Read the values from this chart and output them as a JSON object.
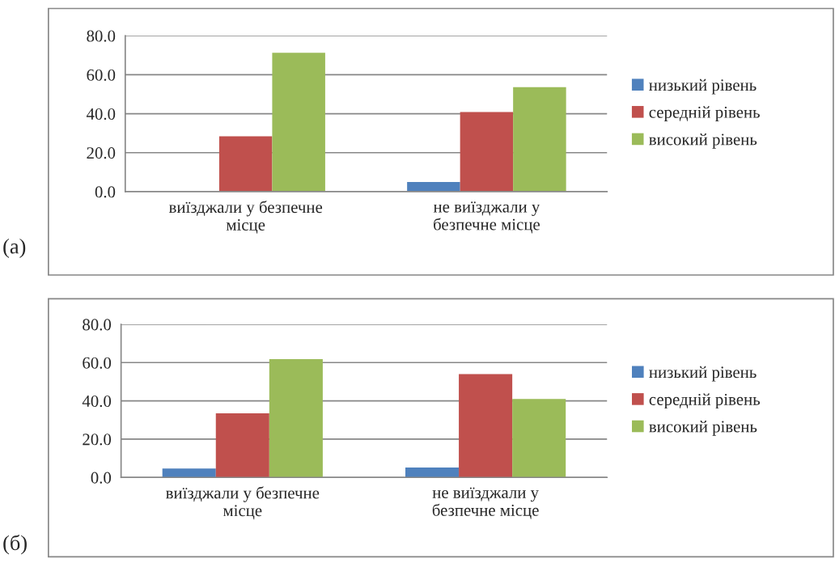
{
  "chart_data": [
    {
      "type": "bar",
      "categories": [
        "виїзджали у безпечне\nмісце",
        "не виїзджали у\nбезпечне місце"
      ],
      "series": [
        {
          "name": "низький рівень",
          "color": "#4f81bd",
          "values": [
            0,
            5.0
          ]
        },
        {
          "name": "середній рівень",
          "color": "#c0504d",
          "values": [
            28.4,
            40.9
          ]
        },
        {
          "name": "високий рівень",
          "color": "#9bbb59",
          "values": [
            71.2,
            53.6
          ]
        }
      ],
      "ylim": [
        0,
        80
      ],
      "yticks": [
        {
          "value": 0,
          "label": "0.0"
        },
        {
          "value": 20,
          "label": "20.0"
        },
        {
          "value": 40,
          "label": "40.0"
        },
        {
          "value": 60,
          "label": "60.0"
        },
        {
          "value": 80,
          "label": "80.0"
        }
      ],
      "grid": "y",
      "legend": "right",
      "annotations": [
        "(а)"
      ]
    },
    {
      "type": "bar",
      "categories": [
        "виїзджали у безпечне\nмісце",
        "не виїзджали у\nбезпечне місце"
      ],
      "series": [
        {
          "name": "низький рівень",
          "color": "#4f81bd",
          "values": [
            4.6,
            5.2
          ]
        },
        {
          "name": "середній рівень",
          "color": "#c0504d",
          "values": [
            33.5,
            54.0
          ]
        },
        {
          "name": "високий рівень",
          "color": "#9bbb59",
          "values": [
            61.8,
            41.0
          ]
        }
      ],
      "ylim": [
        0,
        80
      ],
      "yticks": [
        {
          "value": 0,
          "label": "0.0"
        },
        {
          "value": 20,
          "label": "20.0"
        },
        {
          "value": 40,
          "label": "40.0"
        },
        {
          "value": 60,
          "label": "60.0"
        },
        {
          "value": 80,
          "label": "80.0"
        }
      ],
      "grid": "y",
      "legend": "right",
      "annotations": [
        "(б)"
      ]
    }
  ]
}
